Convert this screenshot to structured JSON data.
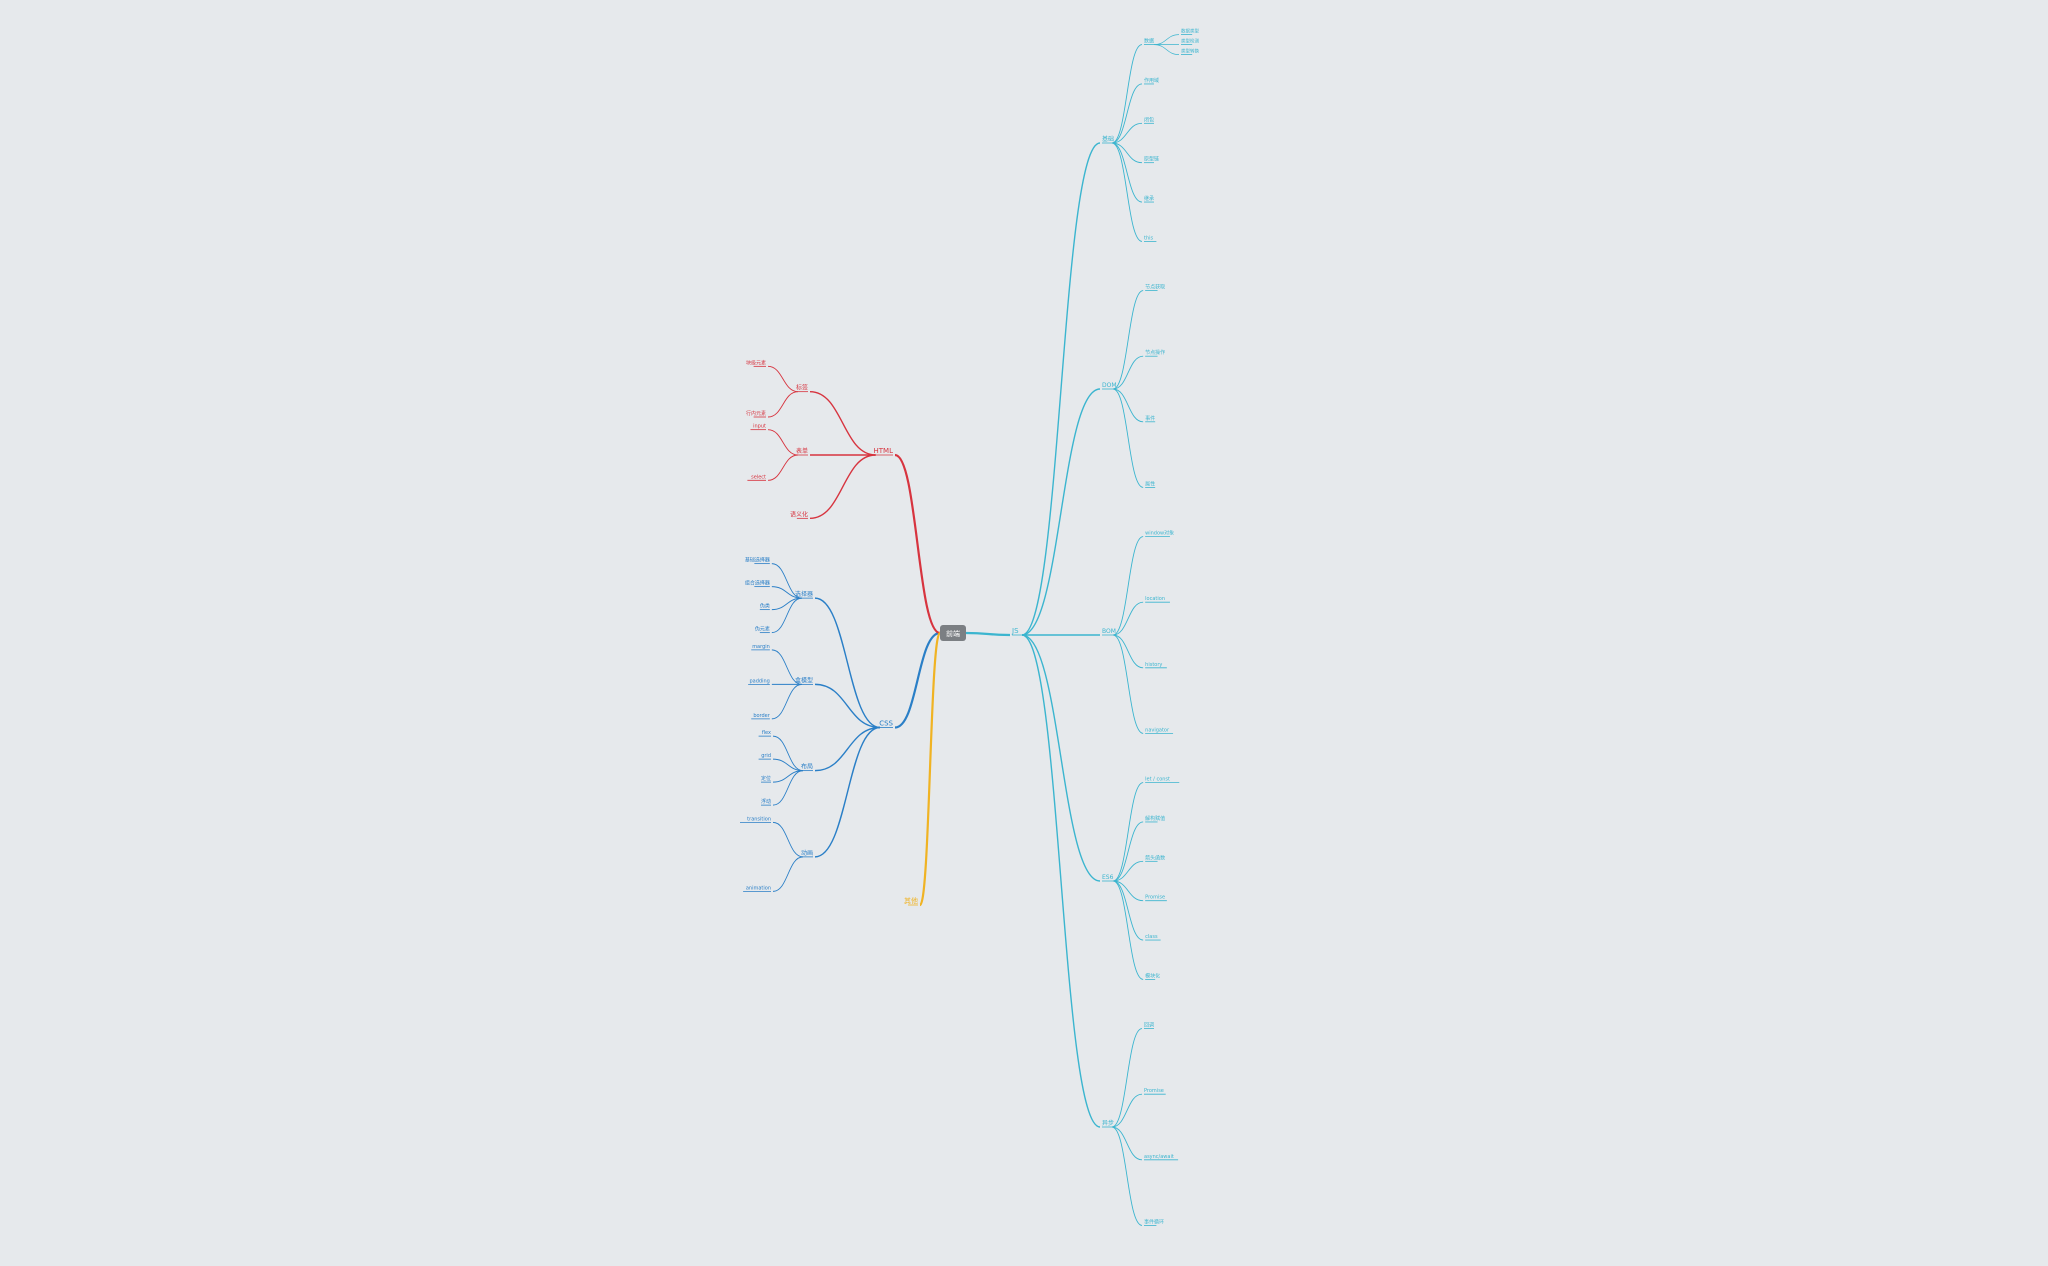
{
  "root": {
    "label": "前端"
  },
  "colors": {
    "js": "#3bb5cf",
    "css": "#2a7fc7",
    "html": "#d7343f",
    "other": "#f0b323",
    "root_fill": "#7b7f83",
    "background": "#e6e9ec"
  },
  "branches": [
    {
      "label": "JS",
      "color": "#3bb5cf",
      "children": [
        {
          "label": "基础",
          "children": [
            {
              "label": "数据",
              "children": [
                {
                  "label": "数据类型"
                },
                {
                  "label": "类型检测"
                },
                {
                  "label": "类型转换"
                }
              ]
            },
            {
              "label": "作用域"
            },
            {
              "label": "闭包"
            },
            {
              "label": "原型链"
            },
            {
              "label": "继承"
            },
            {
              "label": "this"
            }
          ]
        },
        {
          "label": "DOM",
          "children": [
            {
              "label": "节点获取"
            },
            {
              "label": "节点操作"
            },
            {
              "label": "事件"
            },
            {
              "label": "属性"
            }
          ]
        },
        {
          "label": "BOM",
          "children": [
            {
              "label": "window对象"
            },
            {
              "label": "location"
            },
            {
              "label": "history"
            },
            {
              "label": "navigator"
            }
          ]
        },
        {
          "label": "ES6",
          "children": [
            {
              "label": "let / const"
            },
            {
              "label": "解构赋值"
            },
            {
              "label": "箭头函数"
            },
            {
              "label": "Promise"
            },
            {
              "label": "class"
            },
            {
              "label": "模块化"
            }
          ]
        },
        {
          "label": "异步",
          "children": [
            {
              "label": "回调"
            },
            {
              "label": "Promise"
            },
            {
              "label": "async/await"
            },
            {
              "label": "事件循环"
            }
          ]
        }
      ]
    },
    {
      "label": "CSS",
      "color": "#2a7fc7",
      "children": [
        {
          "label": "选择器",
          "children": [
            {
              "label": "基础选择器"
            },
            {
              "label": "组合选择器"
            },
            {
              "label": "伪类"
            },
            {
              "label": "伪元素"
            }
          ]
        },
        {
          "label": "盒模型",
          "children": [
            {
              "label": "margin"
            },
            {
              "label": "padding"
            },
            {
              "label": "border"
            }
          ]
        },
        {
          "label": "布局",
          "children": [
            {
              "label": "flex"
            },
            {
              "label": "grid"
            },
            {
              "label": "定位"
            },
            {
              "label": "浮动"
            }
          ]
        },
        {
          "label": "动画",
          "children": [
            {
              "label": "transition"
            },
            {
              "label": "animation"
            }
          ]
        }
      ]
    },
    {
      "label": "HTML",
      "color": "#d7343f",
      "children": [
        {
          "label": "标签",
          "children": [
            {
              "label": "块级元素"
            },
            {
              "label": "行内元素"
            }
          ]
        },
        {
          "label": "表单",
          "children": [
            {
              "label": "input"
            },
            {
              "label": "select"
            }
          ]
        },
        {
          "label": "语义化"
        }
      ]
    },
    {
      "label": "其他",
      "color": "#f0b323",
      "children": []
    }
  ]
}
